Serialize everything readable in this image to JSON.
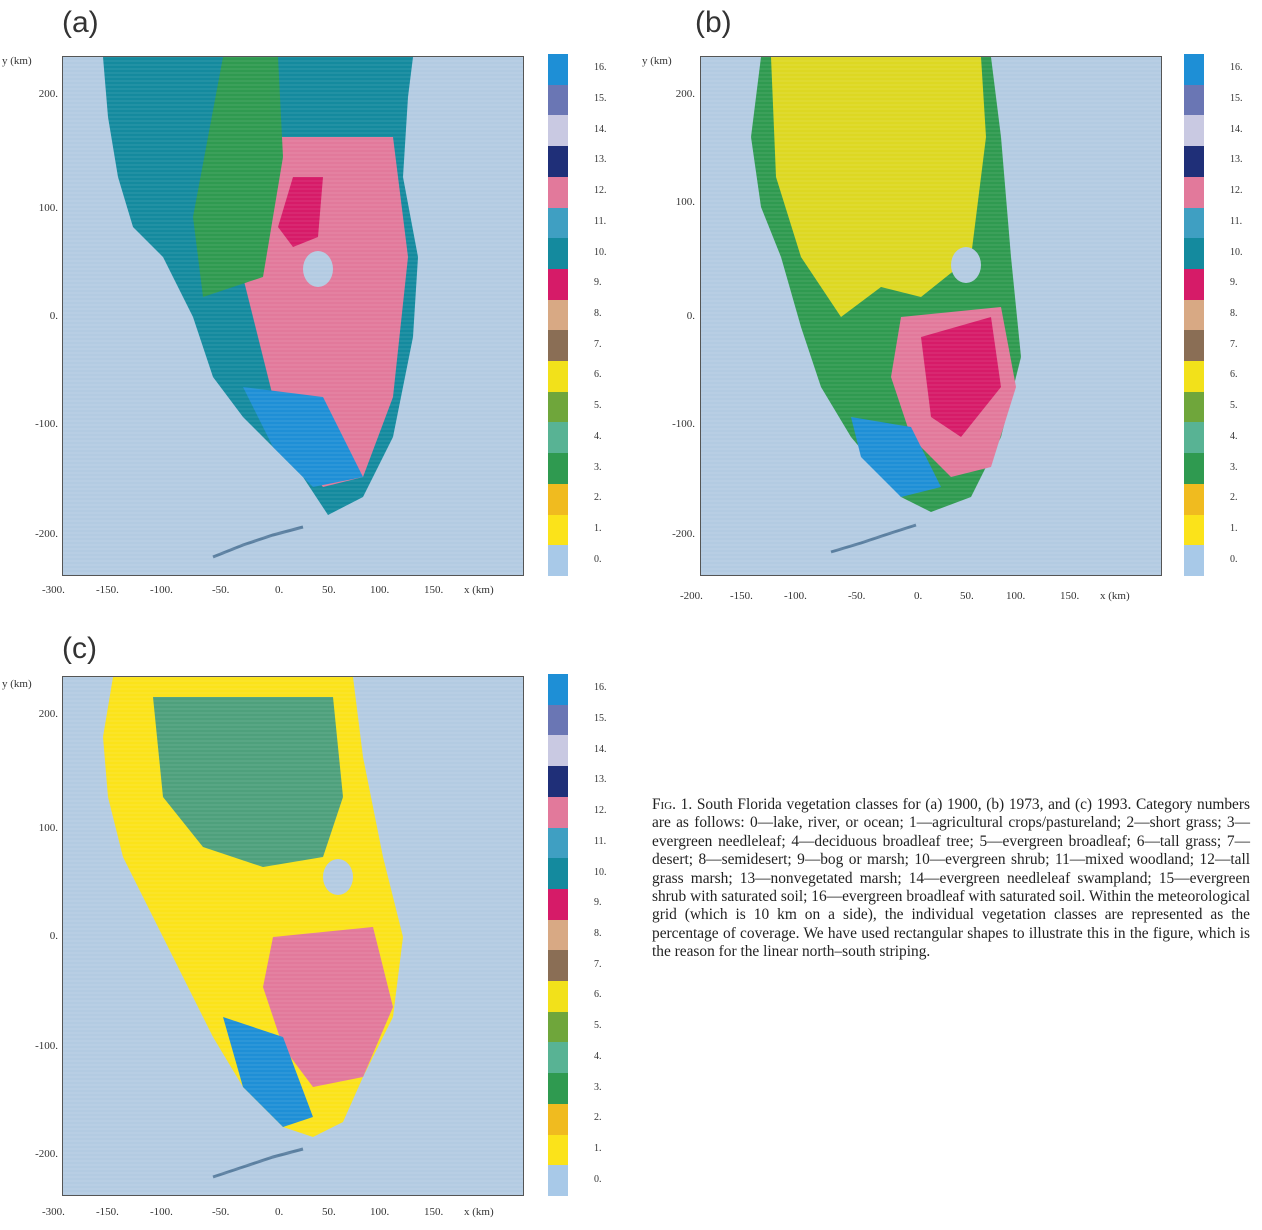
{
  "panels": [
    {
      "letter": "(a)",
      "y_axis_title": "y (km)",
      "x_axis_title": "x (km)",
      "y_ticks": [
        "200.",
        "100.",
        "0.",
        "-100.",
        "-200."
      ],
      "x_ticks": [
        "-300.",
        "-150.",
        "-100.",
        "-50.",
        "0.",
        "50.",
        "100.",
        "150."
      ],
      "legend_labels": [
        "16.",
        "15.",
        "14.",
        "13.",
        "12.",
        "11.",
        "10.",
        "9.",
        "8.",
        "7.",
        "6.",
        "5.",
        "4.",
        "3.",
        "2.",
        "1.",
        "0."
      ]
    },
    {
      "letter": "(b)",
      "y_axis_title": "y (km)",
      "x_axis_title": "x (km)",
      "y_ticks": [
        "200.",
        "100.",
        "0.",
        "-100.",
        "-200."
      ],
      "x_ticks": [
        "-200.",
        "-150.",
        "-100.",
        "-50.",
        "0.",
        "50.",
        "100.",
        "150."
      ],
      "legend_labels": [
        "16.",
        "15.",
        "14.",
        "13.",
        "12.",
        "11.",
        "10.",
        "9.",
        "8.",
        "7.",
        "6.",
        "5.",
        "4.",
        "3.",
        "2.",
        "1.",
        "0."
      ]
    },
    {
      "letter": "(c)",
      "y_axis_title": "y (km)",
      "x_axis_title": "x (km)",
      "y_ticks": [
        "200.",
        "100.",
        "0.",
        "-100.",
        "-200."
      ],
      "x_ticks": [
        "-300.",
        "-150.",
        "-100.",
        "-50.",
        "0.",
        "50.",
        "100.",
        "150."
      ],
      "legend_labels": [
        "16.",
        "15.",
        "14.",
        "13.",
        "12.",
        "11.",
        "10.",
        "9.",
        "8.",
        "7.",
        "6.",
        "5.",
        "4.",
        "3.",
        "2.",
        "1.",
        "0."
      ]
    }
  ],
  "legend_colors": [
    "#1e8fd6",
    "#6a76b4",
    "#c9c9e2",
    "#1f2f78",
    "#e2799b",
    "#3f9fc2",
    "#148a9e",
    "#d61b68",
    "#d8a984",
    "#8a6e55",
    "#f2e11a",
    "#6fa63b",
    "#58b394",
    "#2f9a50",
    "#f0bb1f",
    "#fbe31a",
    "#a8c9e8"
  ],
  "caption": {
    "fig_label": "Fig. 1.",
    "text": "South Florida vegetation classes for (a) 1900, (b) 1973, and (c) 1993. Category numbers are as follows: 0—lake, river, or ocean; 1—agricultural crops/pastureland; 2—short grass; 3—evergreen needleleaf; 4—deciduous broadleaf tree; 5—evergreen broadleaf; 6—tall grass; 7—desert; 8—semidesert; 9—bog or marsh; 10—evergreen shrub; 11—mixed woodland; 12—tall grass marsh; 13—nonvegetated marsh; 14—evergreen needleleaf swampland; 15—evergreen shrub with saturated soil; 16—evergreen broadleaf with saturated soil. Within the meteorological grid (which is 10 km on a side), the individual vegetation classes are represented as the percentage of coverage. We have used rectangular shapes to illustrate this in the figure, which is the reason for the linear north–south striping."
  }
}
